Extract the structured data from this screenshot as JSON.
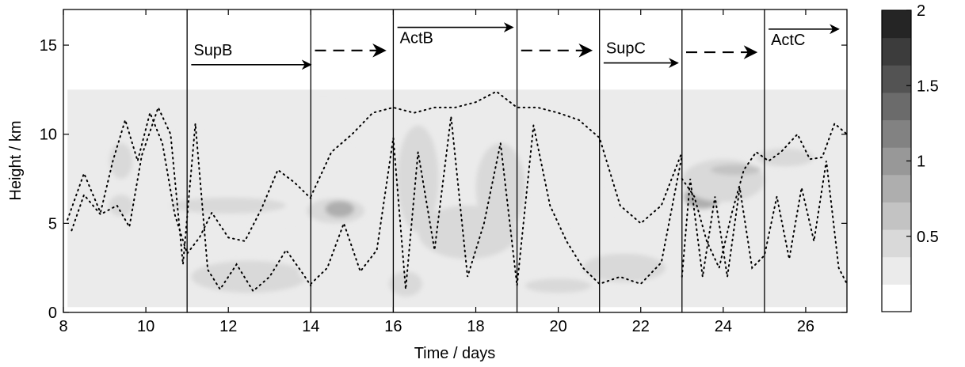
{
  "chart_data": {
    "type": "heatmap",
    "xlabel": "Time / days",
    "ylabel": "Height / km",
    "xlim": [
      8,
      27
    ],
    "ylim": [
      0,
      17
    ],
    "x_ticks": [
      "8",
      "10",
      "12",
      "14",
      "16",
      "18",
      "20",
      "22",
      "24",
      "26"
    ],
    "y_ticks": [
      "0",
      "5",
      "10",
      "15"
    ],
    "colorbar": {
      "min": 0,
      "max": 2,
      "levels": 10,
      "ticks": [
        "0.5",
        "1",
        "1.5",
        "2"
      ],
      "colors": [
        "#ffffff",
        "#ebebeb",
        "#d9d9d9",
        "#c3c3c3",
        "#aeaeae",
        "#989898",
        "#828282",
        "#6b6b6b",
        "#535353",
        "#3c3c3c",
        "#252525"
      ]
    },
    "period_boundaries": [
      11,
      14,
      16,
      19,
      21,
      23,
      25
    ],
    "periods": [
      {
        "label": "SupB",
        "style": "solid",
        "x_start": 11.1,
        "x_end": 14.0,
        "y": 13.9,
        "label_pos": "above"
      },
      {
        "label": "",
        "style": "dashed",
        "x_start": 14.1,
        "x_end": 15.8,
        "y": 14.7
      },
      {
        "label": "ActB",
        "style": "solid",
        "x_start": 16.1,
        "x_end": 18.9,
        "y": 16.0,
        "label_pos": "below"
      },
      {
        "label": "",
        "style": "dashed",
        "x_start": 19.1,
        "x_end": 20.8,
        "y": 14.7
      },
      {
        "label": "SupC",
        "style": "solid",
        "x_start": 21.1,
        "x_end": 22.9,
        "y": 14.0,
        "label_pos": "above"
      },
      {
        "label": "",
        "style": "dashed",
        "x_start": 23.1,
        "x_end": 24.8,
        "y": 14.6
      },
      {
        "label": "ActC",
        "style": "solid",
        "x_start": 25.1,
        "x_end": 26.8,
        "y": 15.9,
        "label_pos": "below"
      }
    ],
    "field_background": {
      "x": [
        8.1,
        27.0
      ],
      "y": [
        0.3,
        12.5
      ],
      "level": 0.15
    },
    "blobs": [
      {
        "x": 17.5,
        "y": 6.0,
        "rx": 1.3,
        "ry": 3.5,
        "v": 0.25
      },
      {
        "x": 13.0,
        "y": 7.8,
        "rx": 2.2,
        "ry": 2.8,
        "v": 0.25
      },
      {
        "x": 22.8,
        "y": 3.8,
        "rx": 1.6,
        "ry": 2.4,
        "v": 0.25
      },
      {
        "x": 11.0,
        "y": 8.5,
        "rx": 1.8,
        "ry": 1.5,
        "v": 0.2
      },
      {
        "x": 12.5,
        "y": 2.0,
        "rx": 1.4,
        "ry": 0.9,
        "v": 0.3
      },
      {
        "x": 12.0,
        "y": 6.0,
        "rx": 1.4,
        "ry": 0.45,
        "v": 0.4
      },
      {
        "x": 9.4,
        "y": 8.5,
        "rx": 0.28,
        "ry": 1.0,
        "v": 0.45
      },
      {
        "x": 9.4,
        "y": 6.0,
        "rx": 0.3,
        "ry": 0.6,
        "v": 0.35
      },
      {
        "x": 14.3,
        "y": 10.8,
        "rx": 1.3,
        "ry": 1.0,
        "v": 0.2
      },
      {
        "x": 14.6,
        "y": 5.7,
        "rx": 0.7,
        "ry": 0.7,
        "v": 0.45
      },
      {
        "x": 14.7,
        "y": 5.8,
        "rx": 0.35,
        "ry": 0.45,
        "v": 0.7
      },
      {
        "x": 14.6,
        "y": 2.3,
        "rx": 0.9,
        "ry": 0.7,
        "v": 0.25
      },
      {
        "x": 16.6,
        "y": 7.5,
        "rx": 0.5,
        "ry": 3.0,
        "v": 0.35
      },
      {
        "x": 17.8,
        "y": 4.5,
        "rx": 1.2,
        "ry": 1.5,
        "v": 0.35
      },
      {
        "x": 18.6,
        "y": 7.0,
        "rx": 0.6,
        "ry": 2.5,
        "v": 0.3
      },
      {
        "x": 16.3,
        "y": 1.6,
        "rx": 0.4,
        "ry": 0.7,
        "v": 0.35
      },
      {
        "x": 20.2,
        "y": 7.5,
        "rx": 0.8,
        "ry": 2.5,
        "v": 0.2
      },
      {
        "x": 21.6,
        "y": 2.5,
        "rx": 1.0,
        "ry": 0.8,
        "v": 0.3
      },
      {
        "x": 20.0,
        "y": 1.5,
        "rx": 0.8,
        "ry": 0.4,
        "v": 0.3
      },
      {
        "x": 22.0,
        "y": 11.0,
        "rx": 0.8,
        "ry": 0.5,
        "v": 0.25
      },
      {
        "x": 23.5,
        "y": 6.5,
        "rx": 0.45,
        "ry": 0.7,
        "v": 0.7
      },
      {
        "x": 24.0,
        "y": 7.4,
        "rx": 1.0,
        "ry": 1.2,
        "v": 0.35
      },
      {
        "x": 24.3,
        "y": 8.0,
        "rx": 0.6,
        "ry": 0.3,
        "v": 0.6
      },
      {
        "x": 25.5,
        "y": 8.7,
        "rx": 0.7,
        "ry": 0.5,
        "v": 0.35
      },
      {
        "x": 25.8,
        "y": 4.5,
        "rx": 1.0,
        "ry": 2.5,
        "v": 0.2
      },
      {
        "x": 26.5,
        "y": 2.5,
        "rx": 0.5,
        "ry": 1.0,
        "v": 0.25
      }
    ],
    "dotted_series": [
      {
        "x": [
          8.1,
          8.5,
          8.9,
          9.2,
          9.5,
          9.8,
          10.1,
          10.4,
          10.7,
          11.0,
          11.3,
          11.6,
          12.0,
          12.4,
          12.8,
          13.2,
          13.6,
          14.0
        ],
        "y": [
          5.2,
          7.8,
          5.6,
          8.5,
          10.8,
          8.5,
          11.2,
          9.5,
          5.5,
          3.3,
          4.2,
          5.6,
          4.2,
          4.0,
          5.8,
          8.0,
          7.3,
          6.4
        ]
      },
      {
        "x": [
          8.2,
          8.5,
          8.9,
          9.3,
          9.6,
          9.9,
          10.3,
          10.6,
          10.9,
          11.2,
          11.5,
          11.8,
          12.2,
          12.6,
          13.0,
          13.4,
          13.8,
          14.0
        ],
        "y": [
          4.6,
          6.6,
          5.5,
          6.0,
          4.8,
          8.8,
          11.5,
          10.0,
          2.7,
          10.6,
          2.4,
          1.3,
          2.7,
          1.2,
          2.0,
          3.5,
          2.2,
          1.5
        ]
      },
      {
        "x": [
          14.0,
          14.5,
          15.0,
          15.5,
          16.0,
          16.5,
          17.0,
          17.5,
          18.0,
          18.5,
          19.0,
          19.5,
          20.0,
          20.5,
          21.0,
          21.5,
          22.0,
          22.5,
          23.0
        ],
        "y": [
          6.5,
          9.0,
          10.0,
          11.2,
          11.5,
          11.2,
          11.5,
          11.5,
          11.8,
          12.4,
          11.5,
          11.5,
          11.2,
          10.8,
          9.8,
          6.0,
          5.0,
          6.0,
          9.0
        ]
      },
      {
        "x": [
          14.0,
          14.4,
          14.8,
          15.2,
          15.6,
          16.0,
          16.3,
          16.6,
          17.0,
          17.4,
          17.8,
          18.2,
          18.6,
          19.0,
          19.4,
          19.8,
          20.2,
          20.6,
          21.0,
          21.5,
          22.0,
          22.5,
          23.0
        ],
        "y": [
          1.6,
          2.5,
          5.0,
          2.3,
          3.5,
          9.8,
          1.3,
          9.0,
          3.5,
          11.0,
          2.0,
          5.0,
          9.5,
          1.5,
          10.5,
          6.0,
          4.0,
          2.5,
          1.6,
          2.0,
          1.6,
          2.8,
          8.8
        ]
      },
      {
        "x": [
          23.0,
          23.3,
          23.6,
          23.9,
          24.2,
          24.5,
          24.8,
          25.1,
          25.4,
          25.8,
          26.1,
          26.4,
          26.7,
          27.0
        ],
        "y": [
          7.5,
          6.5,
          4.0,
          2.5,
          5.5,
          8.0,
          9.0,
          8.5,
          9.0,
          10.0,
          8.6,
          8.7,
          10.6,
          10.0
        ]
      },
      {
        "x": [
          23.0,
          23.2,
          23.5,
          23.8,
          24.1,
          24.4,
          24.7,
          25.0,
          25.3,
          25.6,
          25.9,
          26.2,
          26.5,
          26.8,
          27.0
        ],
        "y": [
          2.0,
          7.5,
          2.0,
          6.5,
          2.0,
          7.0,
          2.5,
          3.2,
          6.5,
          3.0,
          7.0,
          4.0,
          8.5,
          2.5,
          1.6
        ]
      }
    ]
  }
}
